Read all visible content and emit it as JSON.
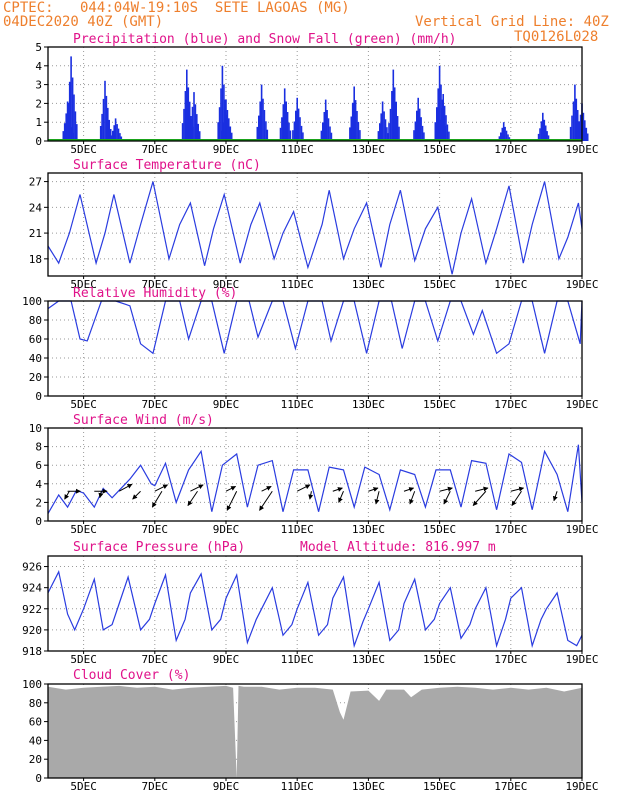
{
  "header": {
    "source": "CPTEC:",
    "location": "044:04W-19:10S  SETE LAGOAS (MG)",
    "run": "04DEC2020 40Z (GMT)",
    "grid_note": "Vertical Grid Line: 40Z",
    "model_code": "TQ0126L028"
  },
  "colors": {
    "header": "#ee7f2d",
    "panel_title": "#e0128a",
    "precip": "#1a2fe0",
    "snow": "#1aa31a",
    "line": "#2a3ce0",
    "cloud": "#a9a9a9",
    "wind_arrow": "#000000"
  },
  "x_ticks": [
    "5DEC",
    "7DEC",
    "9DEC",
    "11DEC",
    "13DEC",
    "15DEC",
    "17DEC",
    "19DEC"
  ],
  "chart_data": [
    {
      "type": "bar",
      "title": "Precipitation (blue) and Snow Fall (green) (mm/h)",
      "ylim": [
        0,
        5
      ],
      "yticks": [
        0,
        1,
        2,
        3,
        4,
        5
      ],
      "peaks": [
        {
          "day": 4.65,
          "value": 4.5
        },
        {
          "day": 4.55,
          "value": 2.1
        },
        {
          "day": 5.6,
          "value": 3.2
        },
        {
          "day": 5.9,
          "value": 1.2
        },
        {
          "day": 7.9,
          "value": 3.8
        },
        {
          "day": 8.1,
          "value": 2.6
        },
        {
          "day": 8.9,
          "value": 4.0
        },
        {
          "day": 9.0,
          "value": 2.2
        },
        {
          "day": 10.0,
          "value": 3.0
        },
        {
          "day": 10.65,
          "value": 2.8
        },
        {
          "day": 11.0,
          "value": 2.3
        },
        {
          "day": 11.8,
          "value": 2.2
        },
        {
          "day": 12.6,
          "value": 2.9
        },
        {
          "day": 13.4,
          "value": 2.1
        },
        {
          "day": 13.7,
          "value": 3.8
        },
        {
          "day": 14.4,
          "value": 2.3
        },
        {
          "day": 15.0,
          "value": 4.0
        },
        {
          "day": 15.1,
          "value": 2.5
        },
        {
          "day": 16.8,
          "value": 1.0
        },
        {
          "day": 17.9,
          "value": 1.5
        },
        {
          "day": 18.8,
          "value": 3.0
        },
        {
          "day": 19.0,
          "value": 2.0
        }
      ],
      "snow": 0
    },
    {
      "type": "line",
      "title": "Surface Temperature (nC)",
      "ylim": [
        16,
        28
      ],
      "yticks": [
        18,
        21,
        24,
        27
      ],
      "x": [
        4.0,
        4.3,
        4.6,
        4.9,
        5.35,
        5.6,
        5.85,
        6.3,
        6.6,
        6.95,
        7.4,
        7.7,
        8.0,
        8.4,
        8.65,
        8.95,
        9.4,
        9.7,
        9.95,
        10.35,
        10.6,
        10.9,
        11.3,
        11.7,
        11.9,
        12.3,
        12.6,
        12.95,
        13.35,
        13.6,
        13.9,
        14.3,
        14.6,
        14.95,
        15.35,
        15.6,
        15.9,
        16.3,
        16.6,
        16.95,
        17.35,
        17.6,
        17.95,
        18.35,
        18.6,
        18.9,
        19.0
      ],
      "y": [
        19.5,
        17.5,
        21,
        25.5,
        17.5,
        21,
        25.5,
        17.5,
        22,
        27.0,
        18.0,
        22,
        24.5,
        17.2,
        21.5,
        25.5,
        17.5,
        22,
        24.5,
        18.0,
        21.0,
        23.5,
        17.0,
        22.0,
        26.0,
        18.0,
        21.5,
        24.5,
        17.0,
        22.0,
        26.0,
        17.8,
        21.5,
        24.0,
        16.2,
        21.0,
        25.0,
        17.5,
        21.5,
        26.5,
        17.5,
        22.0,
        27.0,
        18.0,
        20.5,
        24.5,
        21.5
      ]
    },
    {
      "type": "line",
      "title": "Relative Humidity (%)",
      "ylim": [
        0,
        100
      ],
      "yticks": [
        0,
        20,
        40,
        60,
        80,
        100
      ],
      "x": [
        4.0,
        4.3,
        4.65,
        4.9,
        5.1,
        5.5,
        5.9,
        6.3,
        6.6,
        6.95,
        7.3,
        7.7,
        7.95,
        8.3,
        8.6,
        8.95,
        9.3,
        9.65,
        9.9,
        10.3,
        10.6,
        10.95,
        11.3,
        11.7,
        11.95,
        12.3,
        12.6,
        12.95,
        13.3,
        13.65,
        13.95,
        14.3,
        14.6,
        14.95,
        15.3,
        15.6,
        15.95,
        16.2,
        16.6,
        16.95,
        17.3,
        17.6,
        17.95,
        18.3,
        18.6,
        18.95,
        19.0
      ],
      "y": [
        92,
        100,
        100,
        60,
        58,
        100,
        100,
        95,
        55,
        45,
        100,
        100,
        60,
        100,
        100,
        45,
        100,
        100,
        62,
        100,
        100,
        50,
        100,
        100,
        58,
        100,
        100,
        45,
        100,
        100,
        50,
        100,
        100,
        58,
        100,
        100,
        65,
        90,
        45,
        55,
        100,
        100,
        45,
        100,
        100,
        55,
        100
      ]
    },
    {
      "type": "line",
      "title": "Surface Wind (m/s)",
      "ylim": [
        0,
        10
      ],
      "yticks": [
        0,
        2,
        4,
        6,
        8,
        10
      ],
      "x": [
        4.0,
        4.3,
        4.55,
        4.8,
        5.0,
        5.3,
        5.55,
        5.8,
        6.0,
        6.3,
        6.6,
        6.9,
        7.0,
        7.3,
        7.6,
        7.95,
        8.3,
        8.6,
        8.9,
        9.3,
        9.6,
        9.9,
        10.3,
        10.6,
        10.9,
        11.3,
        11.6,
        11.9,
        12.3,
        12.6,
        12.9,
        13.3,
        13.6,
        13.9,
        14.3,
        14.6,
        14.9,
        15.3,
        15.6,
        15.9,
        16.3,
        16.6,
        16.95,
        17.3,
        17.6,
        17.95,
        18.3,
        18.6,
        18.9,
        19.0
      ],
      "y": [
        0.8,
        2.8,
        1.5,
        3.3,
        3.0,
        1.5,
        3.5,
        2.5,
        3.3,
        4.5,
        6.0,
        4.0,
        3.8,
        6.2,
        2.0,
        5.5,
        7.5,
        1.0,
        6.0,
        7.2,
        1.5,
        6.0,
        6.5,
        1.0,
        5.5,
        5.5,
        1.0,
        5.8,
        5.5,
        1.5,
        5.8,
        5.0,
        1.2,
        5.5,
        5.0,
        1.5,
        5.5,
        5.5,
        1.5,
        6.5,
        6.2,
        1.2,
        7.2,
        6.3,
        1.2,
        7.5,
        5.0,
        1.0,
        8.2,
        2.0
      ],
      "arrows": [
        {
          "day": 4.55,
          "u": 4,
          "v": 0
        },
        {
          "day": 4.6,
          "u": -1.5,
          "v": -2.5
        },
        {
          "day": 5.3,
          "u": 4,
          "v": 0
        },
        {
          "day": 5.5,
          "u": -0.5,
          "v": -2
        },
        {
          "day": 6.0,
          "u": 4,
          "v": 2.2
        },
        {
          "day": 6.6,
          "u": -2.5,
          "v": -2.5
        },
        {
          "day": 7.0,
          "u": 4,
          "v": 2
        },
        {
          "day": 7.2,
          "u": -3,
          "v": -5
        },
        {
          "day": 8.0,
          "u": 4,
          "v": 2
        },
        {
          "day": 8.2,
          "u": -3,
          "v": -4.5
        },
        {
          "day": 9.0,
          "u": 3,
          "v": 1.5
        },
        {
          "day": 9.3,
          "u": -3,
          "v": -6
        },
        {
          "day": 10.0,
          "u": 3,
          "v": 1.5
        },
        {
          "day": 10.3,
          "u": -4,
          "v": -6
        },
        {
          "day": 11.0,
          "u": 4,
          "v": 2
        },
        {
          "day": 11.4,
          "u": -0.5,
          "v": -2.5
        },
        {
          "day": 12.0,
          "u": 3,
          "v": 1
        },
        {
          "day": 12.3,
          "u": -1.5,
          "v": -3.5
        },
        {
          "day": 13.0,
          "u": 3,
          "v": 1
        },
        {
          "day": 13.3,
          "u": -1,
          "v": -4
        },
        {
          "day": 14.0,
          "u": 3,
          "v": 1
        },
        {
          "day": 14.3,
          "u": -1.5,
          "v": -4
        },
        {
          "day": 15.0,
          "u": 4,
          "v": 1
        },
        {
          "day": 15.3,
          "u": -2,
          "v": -4
        },
        {
          "day": 16.0,
          "u": 4,
          "v": 1
        },
        {
          "day": 16.3,
          "u": -4,
          "v": -4.5
        },
        {
          "day": 17.0,
          "u": 4,
          "v": 1
        },
        {
          "day": 17.3,
          "u": -3,
          "v": -4.5
        },
        {
          "day": 18.0,
          "u": 0,
          "v": 0
        },
        {
          "day": 18.3,
          "u": -1,
          "v": -3
        }
      ]
    },
    {
      "type": "line",
      "title": "Surface Pressure (hPa)",
      "subtitle": "Model Altitude: 816.997 m",
      "ylim": [
        918,
        927
      ],
      "yticks": [
        918,
        920,
        922,
        924,
        926
      ],
      "x": [
        4.0,
        4.3,
        4.55,
        4.75,
        5.0,
        5.3,
        5.55,
        5.8,
        6.0,
        6.25,
        6.6,
        6.85,
        7.0,
        7.3,
        7.6,
        7.85,
        8.0,
        8.3,
        8.6,
        8.85,
        9.0,
        9.3,
        9.6,
        9.85,
        10.0,
        10.3,
        10.6,
        10.85,
        11.0,
        11.3,
        11.6,
        11.85,
        12.0,
        12.3,
        12.6,
        12.85,
        13.0,
        13.3,
        13.6,
        13.85,
        14.0,
        14.3,
        14.6,
        14.85,
        15.0,
        15.3,
        15.6,
        15.85,
        16.0,
        16.3,
        16.6,
        16.85,
        17.0,
        17.3,
        17.6,
        17.85,
        18.0,
        18.3,
        18.6,
        18.85,
        19.0
      ],
      "y": [
        923.5,
        925.5,
        921.5,
        920.0,
        922.0,
        924.8,
        920.0,
        920.5,
        922.5,
        925.0,
        920.0,
        921.0,
        922.5,
        925.2,
        919.0,
        921.0,
        923.5,
        925.3,
        920.0,
        921.0,
        923.0,
        925.2,
        918.8,
        921.0,
        922.0,
        924.0,
        919.5,
        920.5,
        922.0,
        924.5,
        919.5,
        920.5,
        923.0,
        925.0,
        918.5,
        920.8,
        922.0,
        924.5,
        919.0,
        920.0,
        922.5,
        924.8,
        920.0,
        921.0,
        922.5,
        924.0,
        919.2,
        920.5,
        922.0,
        924.0,
        918.5,
        921.0,
        923.0,
        924.0,
        918.5,
        921.0,
        922.0,
        923.5,
        919.0,
        918.5,
        919.5
      ]
    },
    {
      "type": "area",
      "title": "Cloud Cover (%)",
      "ylim": [
        0,
        100
      ],
      "yticks": [
        0,
        20,
        40,
        60,
        80,
        100
      ],
      "x": [
        4.0,
        4.5,
        5.0,
        5.5,
        6.0,
        6.5,
        7.0,
        7.5,
        8.0,
        8.5,
        9.0,
        9.2,
        9.3,
        9.35,
        9.5,
        10.0,
        10.5,
        11.0,
        11.5,
        12.0,
        12.2,
        12.3,
        12.5,
        13.0,
        13.3,
        13.5,
        14.0,
        14.2,
        14.5,
        15.0,
        15.5,
        16.0,
        16.5,
        17.0,
        17.5,
        18.0,
        18.5,
        19.0
      ],
      "y": [
        97,
        94,
        96,
        97,
        98,
        96,
        97,
        94,
        96,
        97,
        98,
        96,
        0,
        98,
        97,
        97,
        94,
        96,
        96,
        94,
        70,
        62,
        92,
        93,
        82,
        94,
        94,
        86,
        94,
        96,
        97,
        96,
        94,
        96,
        94,
        96,
        92,
        96
      ]
    }
  ]
}
